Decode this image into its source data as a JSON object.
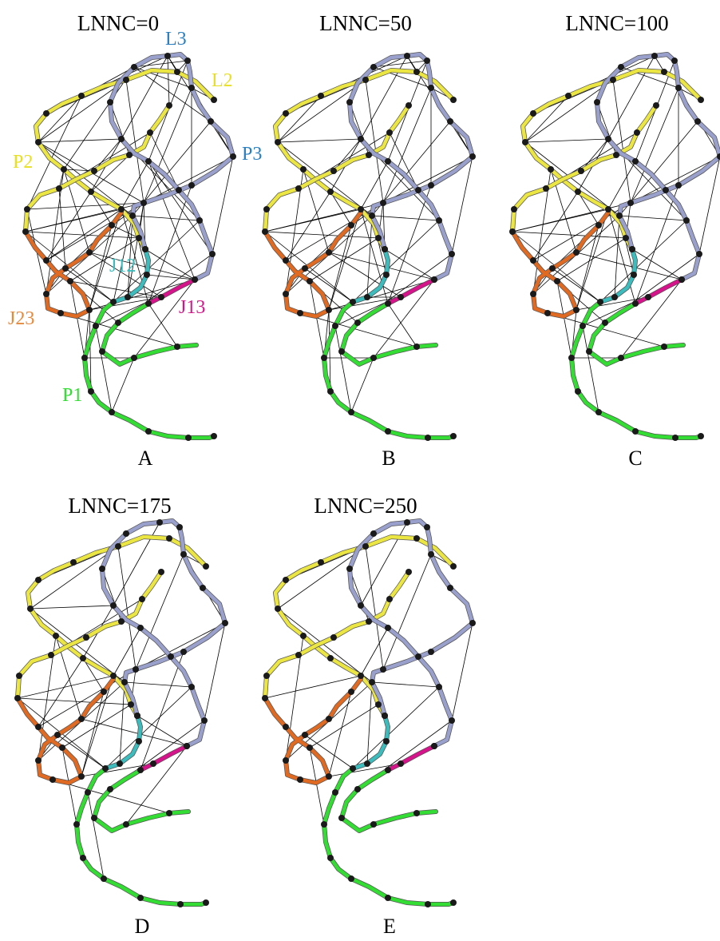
{
  "colors": {
    "P1": "#33dd33",
    "P2": "#ece642",
    "P3": "#9aa0cc",
    "J12": "#3cbcbc",
    "J13": "#d6138a",
    "J23": "#e06a22",
    "node": "#1a1a1a",
    "edge": "#000000",
    "label_L3": "#2a7fc0",
    "label_L2": "#e8e020",
    "label_P2": "#e8e020",
    "label_P3": "#2a7fc0",
    "label_J12": "#3cbcbc",
    "label_J13": "#d6138a",
    "label_J23": "#e8893a",
    "label_P1": "#33dd33"
  },
  "panels": [
    {
      "title": "LNNC=0",
      "letter": "A",
      "contact_density": 1.0
    },
    {
      "title": "LNNC=50",
      "letter": "B",
      "contact_density": 0.78
    },
    {
      "title": "LNNC=100",
      "letter": "C",
      "contact_density": 0.58
    },
    {
      "title": "LNNC=175",
      "letter": "D",
      "contact_density": 0.36
    },
    {
      "title": "LNNC=250",
      "letter": "E",
      "contact_density": 0.2
    }
  ],
  "region_labels": [
    {
      "key": "label_L3",
      "text": "L3"
    },
    {
      "key": "label_L2",
      "text": "L2"
    },
    {
      "key": "label_P2",
      "text": "P2"
    },
    {
      "key": "label_P3",
      "text": "P3"
    },
    {
      "key": "label_J12",
      "text": "J12"
    },
    {
      "key": "label_J13",
      "text": "J13"
    },
    {
      "key": "label_J23",
      "text": "J23"
    },
    {
      "key": "label_P1",
      "text": "P1"
    }
  ]
}
